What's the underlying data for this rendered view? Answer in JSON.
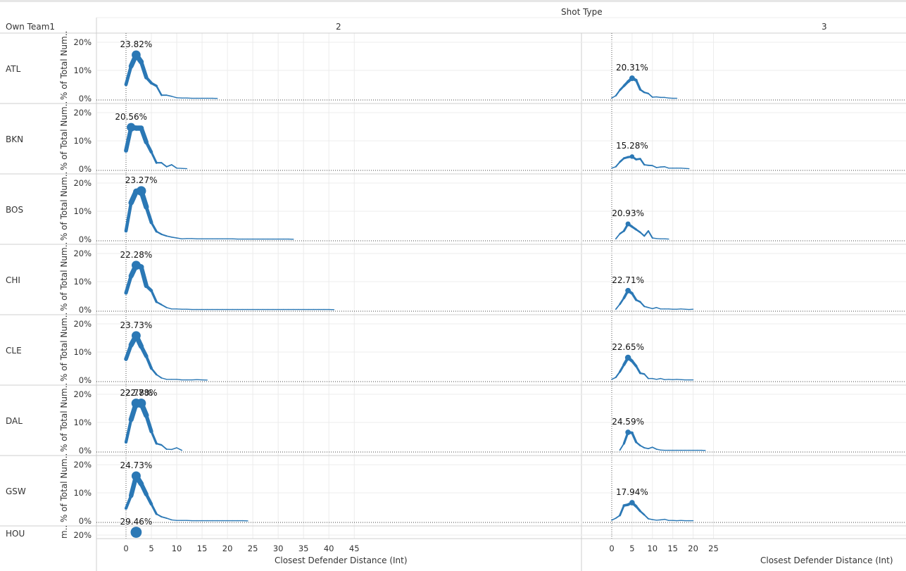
{
  "header": {
    "column_title": "Shot Type",
    "row_title": "Own Team1",
    "panels": [
      "2",
      "3"
    ]
  },
  "axes": {
    "y_label": "% of Total Num..",
    "y_ticks": [
      "0%",
      "10%",
      "20%"
    ],
    "x_label": "Closest Defender Distance (Int)",
    "x_ticks_left": [
      0,
      5,
      10,
      15,
      20,
      25,
      30,
      35,
      40,
      45
    ],
    "x_ticks_right": [
      0,
      5,
      10,
      15,
      20,
      25
    ]
  },
  "colors": {
    "line": "#2b78b5",
    "grid": "#ececec",
    "divider": "#cfcfcf"
  },
  "chart_data": {
    "type": "line",
    "xlabel": "Closest Defender Distance (Int)",
    "ylabel": "% of Total Num..",
    "ylim": [
      0,
      0.22
    ],
    "rows": [
      {
        "team": "ATL",
        "two": {
          "x": [
            0,
            1,
            2,
            3,
            4,
            5,
            6,
            7,
            8,
            9,
            10,
            11,
            12,
            13,
            14,
            15,
            16,
            17,
            18
          ],
          "y": [
            0.05,
            0.115,
            0.155,
            0.13,
            0.075,
            0.055,
            0.045,
            0.012,
            0.012,
            0.008,
            0.003,
            0.002,
            0.002,
            0.001,
            0.001,
            0.001,
            0.001,
            0.001,
            0.0005
          ],
          "peak_label": "23.82%",
          "peak_x": 2
        },
        "three": {
          "x": [
            0,
            1,
            2,
            3,
            4,
            5,
            6,
            7,
            8,
            9,
            10,
            11,
            12,
            13,
            14,
            15,
            16
          ],
          "y": [
            0.002,
            0.01,
            0.03,
            0.045,
            0.06,
            0.072,
            0.065,
            0.032,
            0.022,
            0.018,
            0.005,
            0.006,
            0.004,
            0.004,
            0.002,
            0.001,
            0.001
          ],
          "peak_label": "20.31%",
          "peak_x": 5
        }
      },
      {
        "team": "BKN",
        "two": {
          "x": [
            0,
            1,
            2,
            3,
            4,
            5,
            6,
            7,
            8,
            9,
            10,
            11,
            12
          ],
          "y": [
            0.065,
            0.148,
            0.145,
            0.145,
            0.095,
            0.06,
            0.022,
            0.022,
            0.008,
            0.015,
            0.003,
            0.002,
            0.001
          ],
          "peak_label": "20.56%",
          "peak_x": 1
        },
        "three": {
          "x": [
            0,
            1,
            2,
            3,
            4,
            5,
            6,
            7,
            8,
            9,
            10,
            11,
            12,
            13,
            14,
            15,
            16,
            17,
            18,
            19
          ],
          "y": [
            0.003,
            0.008,
            0.025,
            0.038,
            0.042,
            0.044,
            0.034,
            0.036,
            0.015,
            0.013,
            0.012,
            0.005,
            0.007,
            0.008,
            0.003,
            0.003,
            0.003,
            0.003,
            0.002,
            0.001
          ],
          "peak_label": "15.28%",
          "peak_x": 5
        }
      },
      {
        "team": "BOS",
        "two": {
          "x": [
            0,
            1,
            2,
            3,
            4,
            5,
            6,
            7,
            8,
            9,
            10,
            11,
            12,
            13,
            14,
            15,
            16,
            17,
            18,
            19,
            20,
            21,
            22,
            23,
            24,
            25,
            26,
            27,
            28,
            29,
            30,
            31,
            32,
            33
          ],
          "y": [
            0.03,
            0.13,
            0.17,
            0.172,
            0.115,
            0.06,
            0.028,
            0.018,
            0.012,
            0.008,
            0.005,
            0.002,
            0.003,
            0.003,
            0.002,
            0.002,
            0.002,
            0.002,
            0.002,
            0.002,
            0.002,
            0.002,
            0.001,
            0.001,
            0.001,
            0.001,
            0.001,
            0.001,
            0.001,
            0.001,
            0.001,
            0.001,
            0.001,
            0.0005
          ],
          "peak_label": "23.27%",
          "peak_x": 3
        },
        "three": {
          "x": [
            1,
            2,
            3,
            4,
            5,
            6,
            7,
            8,
            9,
            10,
            11,
            12,
            13,
            14
          ],
          "y": [
            0.002,
            0.02,
            0.03,
            0.055,
            0.045,
            0.035,
            0.025,
            0.012,
            0.03,
            0.005,
            0.003,
            0.002,
            0.002,
            0.001
          ],
          "peak_label": "20.93%",
          "peak_x": 4
        }
      },
      {
        "team": "CHI",
        "two": {
          "x": [
            0,
            1,
            2,
            3,
            4,
            5,
            6,
            7,
            8,
            9,
            10,
            11,
            12,
            13,
            14,
            15,
            16,
            17,
            18,
            19,
            20,
            21,
            22,
            23,
            24,
            25,
            26,
            27,
            28,
            29,
            30,
            31,
            32,
            33,
            34,
            35,
            36,
            37,
            38,
            39,
            40,
            41
          ],
          "y": [
            0.06,
            0.12,
            0.158,
            0.152,
            0.085,
            0.068,
            0.028,
            0.018,
            0.008,
            0.003,
            0.003,
            0.002,
            0.002,
            0.001,
            0.001,
            0.001,
            0.001,
            0.001,
            0.001,
            0.001,
            0.001,
            0.001,
            0.001,
            0.001,
            0.001,
            0.001,
            0.001,
            0.001,
            0.001,
            0.001,
            0.001,
            0.001,
            0.001,
            0.001,
            0.001,
            0.001,
            0.001,
            0.001,
            0.001,
            0.001,
            0.001,
            0.0005
          ],
          "peak_label": "22.28%",
          "peak_x": 2
        },
        "three": {
          "x": [
            1,
            2,
            3,
            4,
            5,
            6,
            7,
            8,
            9,
            10,
            11,
            12,
            13,
            14,
            15,
            16,
            17,
            18,
            19,
            20
          ],
          "y": [
            0.002,
            0.02,
            0.042,
            0.068,
            0.058,
            0.035,
            0.028,
            0.012,
            0.008,
            0.004,
            0.008,
            0.003,
            0.003,
            0.003,
            0.002,
            0.002,
            0.003,
            0.002,
            0.001,
            0.002
          ],
          "peak_label": "22.71%",
          "peak_x": 4
        }
      },
      {
        "team": "CLE",
        "two": {
          "x": [
            0,
            1,
            2,
            3,
            4,
            5,
            6,
            7,
            8,
            9,
            10,
            11,
            12,
            13,
            14,
            15,
            16
          ],
          "y": [
            0.075,
            0.125,
            0.158,
            0.12,
            0.085,
            0.042,
            0.02,
            0.008,
            0.003,
            0.003,
            0.003,
            0.001,
            0.001,
            0.001,
            0.002,
            0.001,
            0.0005
          ],
          "peak_label": "23.73%",
          "peak_x": 2
        },
        "three": {
          "x": [
            0,
            1,
            2,
            3,
            4,
            5,
            6,
            7,
            8,
            9,
            10,
            11,
            12,
            13,
            14,
            15,
            16,
            17,
            18,
            19,
            20
          ],
          "y": [
            0.003,
            0.01,
            0.03,
            0.055,
            0.08,
            0.068,
            0.05,
            0.025,
            0.022,
            0.006,
            0.006,
            0.003,
            0.006,
            0.002,
            0.003,
            0.002,
            0.003,
            0.002,
            0.001,
            0.001,
            0.001
          ],
          "peak_label": "22.65%",
          "peak_x": 4
        }
      },
      {
        "team": "DAL",
        "two": {
          "x": [
            0,
            1,
            2,
            3,
            4,
            5,
            6,
            7,
            8,
            9,
            10,
            11
          ],
          "y": [
            0.03,
            0.11,
            0.168,
            0.168,
            0.125,
            0.068,
            0.025,
            0.02,
            0.005,
            0.004,
            0.01,
            0.001
          ],
          "peak_label": "22.78%",
          "peak_x": 2,
          "peak2_label": "22.78%",
          "peak2_x": 3
        },
        "three": {
          "x": [
            2,
            3,
            4,
            5,
            6,
            7,
            8,
            9,
            10,
            11,
            12,
            13,
            14,
            15,
            16,
            17,
            18,
            19,
            20,
            21,
            22,
            23
          ],
          "y": [
            0.002,
            0.025,
            0.065,
            0.063,
            0.03,
            0.018,
            0.01,
            0.007,
            0.012,
            0.005,
            0.002,
            0.001,
            0.001,
            0.001,
            0.001,
            0.001,
            0.001,
            0.001,
            0.001,
            0.001,
            0.001,
            0.0005
          ],
          "peak_label": "24.59%",
          "peak_x": 4
        }
      },
      {
        "team": "GSW",
        "two": {
          "x": [
            0,
            1,
            2,
            3,
            4,
            5,
            6,
            7,
            8,
            9,
            10,
            11,
            12,
            13,
            14,
            15,
            16,
            17,
            18,
            19,
            20,
            21,
            22,
            23,
            24
          ],
          "y": [
            0.045,
            0.09,
            0.16,
            0.132,
            0.095,
            0.06,
            0.025,
            0.015,
            0.01,
            0.004,
            0.002,
            0.002,
            0.002,
            0.001,
            0.001,
            0.001,
            0.001,
            0.001,
            0.001,
            0.001,
            0.001,
            0.001,
            0.001,
            0.001,
            0.0005
          ],
          "peak_label": "24.73%",
          "peak_x": 2
        },
        "three": {
          "x": [
            0,
            1,
            2,
            3,
            4,
            5,
            6,
            7,
            8,
            9,
            10,
            11,
            12,
            13,
            14,
            15,
            16,
            17,
            18,
            19,
            20
          ],
          "y": [
            0.003,
            0.01,
            0.02,
            0.055,
            0.058,
            0.065,
            0.052,
            0.035,
            0.022,
            0.008,
            0.005,
            0.003,
            0.004,
            0.006,
            0.002,
            0.002,
            0.001,
            0.002,
            0.001,
            0.001,
            0.001
          ],
          "peak_label": "17.94%",
          "peak_x": 5
        }
      },
      {
        "team": "HOU",
        "two": {
          "x": [
            2
          ],
          "y": [
            0.21
          ],
          "peak_label": "29.46%",
          "peak_x": 2
        },
        "three": {
          "x": [],
          "y": []
        }
      }
    ]
  }
}
